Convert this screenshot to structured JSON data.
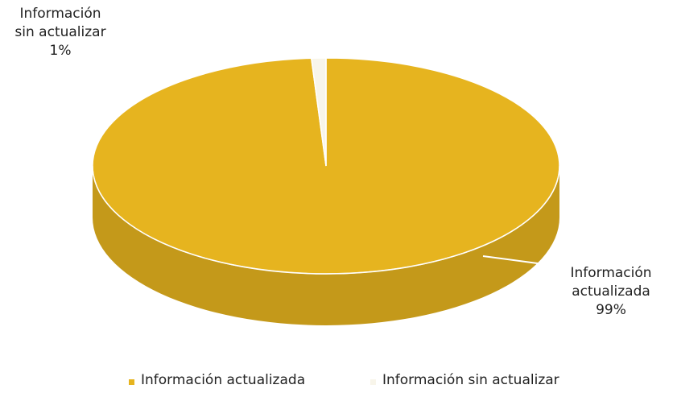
{
  "chart_data": {
    "type": "pie",
    "categories": [
      "Información actualizada",
      "Información sin actualizar"
    ],
    "values": [
      99,
      1
    ],
    "value_labels": [
      "99%",
      "1%"
    ],
    "colors": [
      "#e6b41f",
      "#f8f5ea"
    ],
    "legend": "bottom"
  }
}
